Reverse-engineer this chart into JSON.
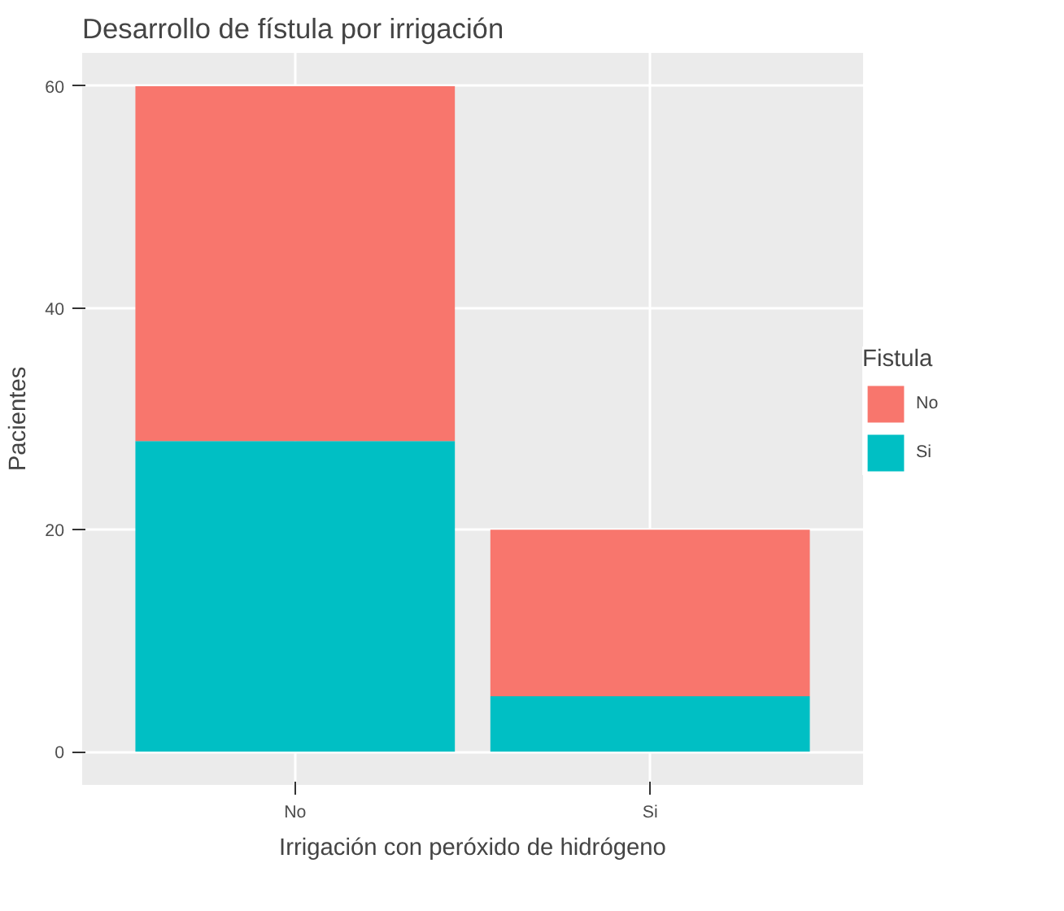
{
  "chart_data": {
    "type": "bar",
    "title": "Desarrollo de fístula por irrigación",
    "xlabel": "Irrigación con peróxido de hidrógeno",
    "ylabel": "Pacientes",
    "legend_title": "Fistula",
    "categories": [
      "No",
      "Si"
    ],
    "stacked": true,
    "series": [
      {
        "name": "Si",
        "color": "#00bfc4",
        "values": [
          28,
          5
        ]
      },
      {
        "name": "No",
        "color": "#f8766d",
        "values": [
          32,
          15
        ]
      }
    ],
    "ylim": [
      -3,
      63
    ],
    "yticks": [
      0,
      20,
      40,
      60
    ],
    "grid": true,
    "legend": "right"
  }
}
